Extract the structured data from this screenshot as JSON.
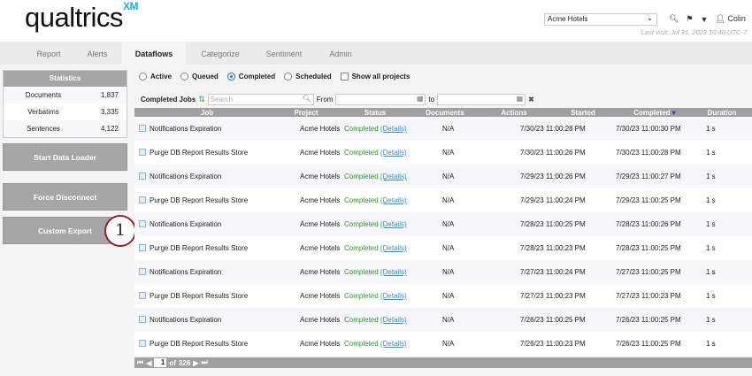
{
  "header": {
    "logo": "qualtrics",
    "logo_sup": "XM",
    "project_select": "Acme Hotels",
    "user": "Colin",
    "last_visit": "Last visit: Jul 31, 2023 10:40 UTC-7"
  },
  "tabs": [
    "Report",
    "Alerts",
    "Dataflows",
    "Categorize",
    "Sentiment",
    "Admin"
  ],
  "active_tab": "Dataflows",
  "statistics": {
    "title": "Statistics",
    "rows": [
      {
        "label": "Documents",
        "value": "1,837"
      },
      {
        "label": "Verbatims",
        "value": "3,335"
      },
      {
        "label": "Sentences",
        "value": "4,122"
      }
    ]
  },
  "buttons": {
    "start": "Start Data Loader",
    "force": "Force Disconnect",
    "export": "Custom Export"
  },
  "callout": "1",
  "filters": {
    "active": "Active",
    "queued": "Queued",
    "completed": "Completed",
    "scheduled": "Scheduled",
    "show_all": "Show all projects",
    "selected": "Completed"
  },
  "toolbar": {
    "title": "Completed Jobs",
    "search_placeholder": "Search",
    "from": "From",
    "to": "to"
  },
  "columns": [
    "Job",
    "Project",
    "Status",
    "Documents",
    "Actions",
    "Started",
    "Completed",
    "Duration"
  ],
  "rows": [
    {
      "job": "Notifications Expiration",
      "project": "Acme Hotels",
      "status": "Completed",
      "details": "(Details)",
      "documents": "N/A",
      "started": "7/30/23 11:00:28 PM",
      "completed": "7/30/23 11:00:30 PM",
      "duration": "1 s"
    },
    {
      "job": "Purge DB Report Results Store",
      "project": "Acme Hotels",
      "status": "Completed",
      "details": "(Details)",
      "documents": "N/A",
      "started": "7/30/23 11:00:26 PM",
      "completed": "7/30/23 11:00:28 PM",
      "duration": "1 s"
    },
    {
      "job": "Notifications Expiration",
      "project": "Acme Hotels",
      "status": "Completed",
      "details": "(Details)",
      "documents": "N/A",
      "started": "7/29/23 11:00:26 PM",
      "completed": "7/29/23 11:00:27 PM",
      "duration": "1 s"
    },
    {
      "job": "Purge DB Report Results Store",
      "project": "Acme Hotels",
      "status": "Completed",
      "details": "(Details)",
      "documents": "N/A",
      "started": "7/29/23 11:00:24 PM",
      "completed": "7/29/23 11:00:25 PM",
      "duration": "1 s"
    },
    {
      "job": "Notifications Expiration",
      "project": "Acme Hotels",
      "status": "Completed",
      "details": "(Details)",
      "documents": "N/A",
      "started": "7/28/23 11:00:25 PM",
      "completed": "7/28/23 11:00:26 PM",
      "duration": "1 s"
    },
    {
      "job": "Purge DB Report Results Store",
      "project": "Acme Hotels",
      "status": "Completed",
      "details": "(Details)",
      "documents": "N/A",
      "started": "7/28/23 11:00:23 PM",
      "completed": "7/28/23 11:00:25 PM",
      "duration": "1 s"
    },
    {
      "job": "Notifications Expiration",
      "project": "Acme Hotels",
      "status": "Completed",
      "details": "(Details)",
      "documents": "N/A",
      "started": "7/27/23 11:00:24 PM",
      "completed": "7/27/23 11:00:25 PM",
      "duration": "1 s"
    },
    {
      "job": "Purge DB Report Results Store",
      "project": "Acme Hotels",
      "status": "Completed",
      "details": "(Details)",
      "documents": "N/A",
      "started": "7/27/23 11:00:23 PM",
      "completed": "7/27/23 11:00:23 PM",
      "duration": "1 s"
    },
    {
      "job": "Notifications Expiration",
      "project": "Acme Hotels",
      "status": "Completed",
      "details": "(Details)",
      "documents": "N/A",
      "started": "7/26/23 11:00:25 PM",
      "completed": "7/26/23 11:00:25 PM",
      "duration": "1 s"
    },
    {
      "job": "Purge DB Report Results Store",
      "project": "Acme Hotels",
      "status": "Completed",
      "details": "(Details)",
      "documents": "N/A",
      "started": "7/26/23 11:00:23 PM",
      "completed": "7/26/23 11:00:25 PM",
      "duration": "1 s"
    }
  ],
  "pager": {
    "page": "1",
    "of": "of",
    "total": "326"
  },
  "colors": {
    "completed": "#2e9a2e",
    "link": "#3a8fc8",
    "header_gray": "#a0a0a0",
    "callout": "#a01c2c"
  }
}
